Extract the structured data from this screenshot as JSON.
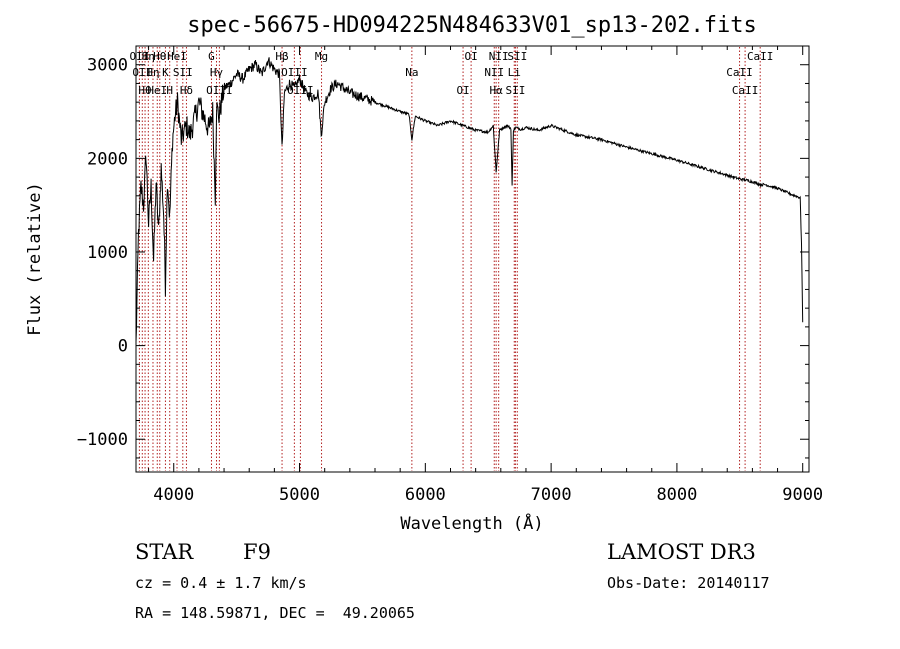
{
  "chart_data": {
    "type": "line",
    "title": "spec-56675-HD094225N484633V01_sp13-202.fits",
    "xlabel": "Wavelength (Å)",
    "ylabel": "Flux (relative)",
    "xlim": [
      3700,
      9050
    ],
    "ylim": [
      -1350,
      3200
    ],
    "xticks": [
      4000,
      5000,
      6000,
      7000,
      8000,
      9000
    ],
    "yticks": [
      -1000,
      0,
      1000,
      2000,
      3000
    ],
    "grid": false,
    "series": [
      {
        "name": "flux",
        "color": "#000000",
        "x": [
          3700,
          3720,
          3740,
          3760,
          3780,
          3800,
          3820,
          3840,
          3860,
          3880,
          3900,
          3920,
          3934,
          3950,
          3968,
          3990,
          4010,
          4030,
          4060,
          4101,
          4130,
          4160,
          4200,
          4240,
          4280,
          4310,
          4330,
          4340,
          4360,
          4400,
          4450,
          4500,
          4550,
          4600,
          4650,
          4700,
          4750,
          4800,
          4840,
          4861,
          4880,
          4920,
          4960,
          5000,
          5050,
          5100,
          5150,
          5172,
          5200,
          5250,
          5300,
          5400,
          5500,
          5600,
          5700,
          5800,
          5870,
          5893,
          5920,
          6000,
          6100,
          6200,
          6300,
          6400,
          6500,
          6540,
          6563,
          6590,
          6620,
          6650,
          6680,
          6690,
          6700,
          6720,
          6760,
          6800,
          6900,
          7000,
          7200,
          7400,
          7600,
          7800,
          8000,
          8200,
          8400,
          8498,
          8542,
          8600,
          8662,
          8700,
          8800,
          8900,
          8980,
          8990,
          9000
        ],
        "y": [
          0,
          1200,
          1700,
          1500,
          2050,
          1300,
          1700,
          900,
          1750,
          1200,
          1900,
          1400,
          650,
          1800,
          1350,
          2200,
          2450,
          2600,
          2200,
          2350,
          2250,
          2400,
          2600,
          2450,
          2300,
          2500,
          1600,
          2550,
          2450,
          2750,
          2800,
          2900,
          2850,
          2950,
          3000,
          2900,
          3050,
          2950,
          2900,
          2100,
          2700,
          2800,
          2750,
          2850,
          2700,
          2650,
          2700,
          2250,
          2600,
          2750,
          2800,
          2700,
          2650,
          2600,
          2550,
          2500,
          2470,
          2200,
          2450,
          2400,
          2350,
          2400,
          2350,
          2300,
          2280,
          2350,
          1850,
          2300,
          2330,
          2350,
          2320,
          1700,
          2300,
          2330,
          2310,
          2330,
          2300,
          2350,
          2250,
          2200,
          2120,
          2050,
          1980,
          1900,
          1820,
          1780,
          1770,
          1750,
          1720,
          1720,
          1680,
          1620,
          1580,
          1100,
          250
        ]
      }
    ],
    "line_markers": [
      {
        "wavelength": 3727,
        "label": "OII"
      },
      {
        "wavelength": 3750,
        "label": "OII"
      },
      {
        "wavelength": 3772,
        "label": "Hθ"
      },
      {
        "wavelength": 3798,
        "label": "Hη"
      },
      {
        "wavelength": 3835,
        "label": "Hη"
      },
      {
        "wavelength": 3869,
        "label": "HeI"
      },
      {
        "wavelength": 3889,
        "label": "Hθ"
      },
      {
        "wavelength": 3934,
        "label": "K"
      },
      {
        "wavelength": 3968,
        "label": "H"
      },
      {
        "wavelength": 4026,
        "label": "HeI"
      },
      {
        "wavelength": 4072,
        "label": "SII"
      },
      {
        "wavelength": 4101,
        "label": "Hδ"
      },
      {
        "wavelength": 4300,
        "label": "G"
      },
      {
        "wavelength": 4340,
        "label": "Hγ"
      },
      {
        "wavelength": 4363,
        "label": "OIII"
      },
      {
        "wavelength": 4861,
        "label": "Hβ"
      },
      {
        "wavelength": 4959,
        "label": "OIII"
      },
      {
        "wavelength": 5007,
        "label": "OIII"
      },
      {
        "wavelength": 5175,
        "label": "Mg"
      },
      {
        "wavelength": 5893,
        "label": "Na"
      },
      {
        "wavelength": 6300,
        "label": "OI"
      },
      {
        "wavelength": 6364,
        "label": "OI"
      },
      {
        "wavelength": 6548,
        "label": "NII"
      },
      {
        "wavelength": 6563,
        "label": "Hα"
      },
      {
        "wavelength": 6583,
        "label": "NII"
      },
      {
        "wavelength": 6707,
        "label": "Li"
      },
      {
        "wavelength": 6716,
        "label": "SII"
      },
      {
        "wavelength": 6731,
        "label": "SII"
      },
      {
        "wavelength": 8498,
        "label": "CaII"
      },
      {
        "wavelength": 8542,
        "label": "CaII"
      },
      {
        "wavelength": 8662,
        "label": "CaII"
      }
    ],
    "marker_color": "#b22222"
  },
  "info": {
    "object_class": "STAR",
    "subclass": "F9",
    "survey": "LAMOST DR3",
    "redshift_text": "cz = 0.4 ± 1.7 km/s",
    "obs_date_text": "Obs-Date: 20140117",
    "coords_text": "RA = 148.59871, DEC =  49.20065"
  }
}
